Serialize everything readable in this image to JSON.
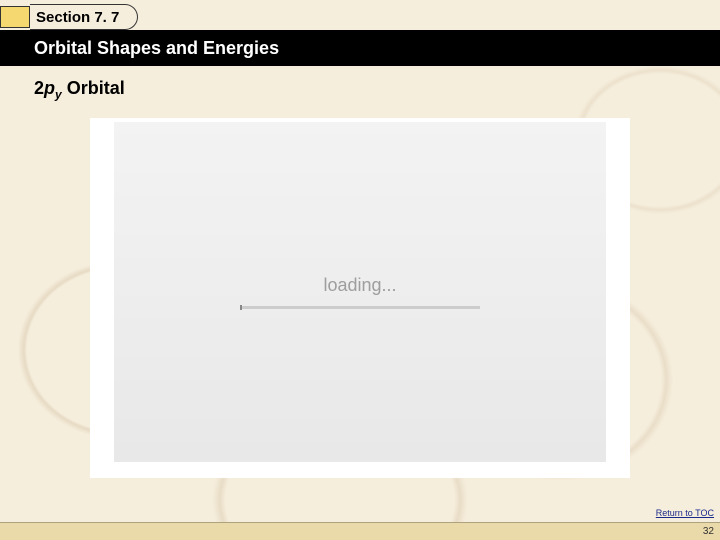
{
  "slide": {
    "section_label": "Section 7. 7",
    "subtitle": "Orbital Shapes and Energies",
    "content_title_prefix": "2",
    "content_title_p": "p",
    "content_title_sub": "y",
    "content_title_suffix": " Orbital",
    "loading_text": "loading...",
    "toc_link": "Return to TOC",
    "page_number": "32",
    "copyright": ""
  },
  "colors": {
    "page_bg": "#f6eedd",
    "tab_yellow": "#f5d86f",
    "subtitle_bar": "#000000",
    "footer_bar": "#ead9a9",
    "media_bg_top": "#f3f3f3",
    "media_bg_bottom": "#e8e8e8",
    "loading_text": "#9e9e9e",
    "link": "#1a2a8a"
  }
}
